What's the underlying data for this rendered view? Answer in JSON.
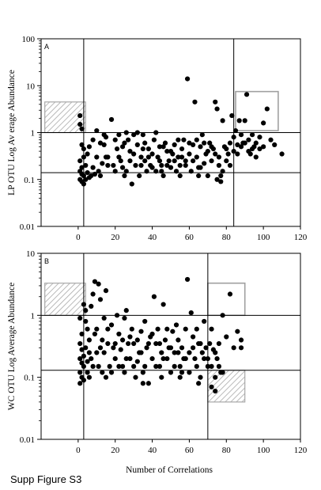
{
  "caption": "Supp Figure S3",
  "xlabel": "Number of Correlations",
  "colors": {
    "points": "#000000",
    "hatch_box": "#a8a8a8",
    "open_box": "#a0a0a0",
    "frame": "#000000"
  },
  "chart_data": [
    {
      "type": "scatter",
      "panel_label": "A",
      "ylabel": "LP OTU Log Av erage Abundance",
      "xlabel": "",
      "xlim": [
        -20,
        120
      ],
      "ylim": [
        0.01,
        100
      ],
      "yscale": "log",
      "xticks": [
        "0",
        "20",
        "40",
        "60",
        "80",
        "100",
        "120"
      ],
      "yticks": [
        "0.01",
        "0.1",
        "1",
        "10",
        "100"
      ],
      "reference_lines": {
        "x": [
          3,
          84
        ],
        "y": [
          1,
          0.14
        ]
      },
      "highlight_boxes": [
        {
          "style": "hatched",
          "x": [
            -18,
            4
          ],
          "y": [
            1,
            4.5
          ]
        },
        {
          "style": "open",
          "x": [
            85,
            108
          ],
          "y": [
            1.1,
            7.5
          ]
        }
      ],
      "points": [
        [
          1,
          2.3
        ],
        [
          1,
          1.5
        ],
        [
          2,
          1.2
        ],
        [
          2,
          0.55
        ],
        [
          3,
          0.45
        ],
        [
          3,
          0.3
        ],
        [
          1,
          0.25
        ],
        [
          2,
          0.18
        ],
        [
          1,
          0.15
        ],
        [
          2,
          0.13
        ],
        [
          3,
          0.12
        ],
        [
          1,
          0.1
        ],
        [
          2,
          0.09
        ],
        [
          3,
          0.08
        ],
        [
          4,
          0.2
        ],
        [
          5,
          0.35
        ],
        [
          5,
          0.14
        ],
        [
          6,
          0.11
        ],
        [
          4,
          0.1
        ],
        [
          7,
          0.12
        ],
        [
          8,
          0.18
        ],
        [
          9,
          0.13
        ],
        [
          10,
          0.3
        ],
        [
          11,
          0.15
        ],
        [
          12,
          0.12
        ],
        [
          13,
          0.22
        ],
        [
          14,
          0.55
        ],
        [
          15,
          0.8
        ],
        [
          16,
          0.3
        ],
        [
          18,
          1.9
        ],
        [
          19,
          0.2
        ],
        [
          20,
          0.15
        ],
        [
          21,
          0.45
        ],
        [
          22,
          0.3
        ],
        [
          23,
          0.25
        ],
        [
          24,
          0.18
        ],
        [
          25,
          0.6
        ],
        [
          26,
          0.15
        ],
        [
          27,
          0.7
        ],
        [
          28,
          0.4
        ],
        [
          29,
          0.08
        ],
        [
          30,
          0.35
        ],
        [
          31,
          0.2
        ],
        [
          32,
          0.55
        ],
        [
          33,
          0.12
        ],
        [
          34,
          0.3
        ],
        [
          35,
          0.9
        ],
        [
          36,
          0.25
        ],
        [
          37,
          0.15
        ],
        [
          38,
          0.45
        ],
        [
          39,
          0.2
        ],
        [
          40,
          0.35
        ],
        [
          41,
          0.7
        ],
        [
          42,
          0.15
        ],
        [
          43,
          0.3
        ],
        [
          44,
          0.5
        ],
        [
          45,
          0.2
        ],
        [
          46,
          0.12
        ],
        [
          47,
          0.6
        ],
        [
          48,
          0.4
        ],
        [
          49,
          0.25
        ],
        [
          50,
          0.18
        ],
        [
          51,
          0.35
        ],
        [
          52,
          0.55
        ],
        [
          53,
          0.15
        ],
        [
          54,
          0.3
        ],
        [
          55,
          0.2
        ],
        [
          56,
          0.45
        ],
        [
          57,
          0.7
        ],
        [
          58,
          0.25
        ],
        [
          59,
          14
        ],
        [
          60,
          0.35
        ],
        [
          61,
          0.15
        ],
        [
          62,
          0.55
        ],
        [
          63,
          4.5
        ],
        [
          64,
          0.3
        ],
        [
          65,
          0.18
        ],
        [
          66,
          0.5
        ],
        [
          67,
          0.9
        ],
        [
          68,
          0.22
        ],
        [
          69,
          0.35
        ],
        [
          70,
          0.12
        ],
        [
          71,
          0.6
        ],
        [
          72,
          0.25
        ],
        [
          73,
          0.45
        ],
        [
          74,
          4.5
        ],
        [
          75,
          3.2
        ],
        [
          76,
          0.3
        ],
        [
          77,
          0.12
        ],
        [
          78,
          1.8
        ],
        [
          79,
          0.5
        ],
        [
          80,
          0.25
        ],
        [
          81,
          0.35
        ],
        [
          82,
          0.6
        ],
        [
          83,
          2.3
        ],
        [
          84,
          0.4
        ],
        [
          86,
          0.55
        ],
        [
          87,
          1.8
        ],
        [
          88,
          0.9
        ],
        [
          89,
          0.6
        ],
        [
          90,
          1.8
        ],
        [
          91,
          6.5
        ],
        [
          92,
          0.7
        ],
        [
          93,
          0.35
        ],
        [
          94,
          0.45
        ],
        [
          95,
          0.5
        ],
        [
          96,
          0.3
        ],
        [
          98,
          0.45
        ],
        [
          100,
          1.6
        ],
        [
          102,
          3.2
        ],
        [
          104,
          0.7
        ],
        [
          106,
          0.55
        ],
        [
          110,
          0.35
        ],
        [
          6,
          0.5
        ],
        [
          8,
          0.7
        ],
        [
          10,
          1.1
        ],
        [
          12,
          0.6
        ],
        [
          14,
          0.9
        ],
        [
          16,
          0.2
        ],
        [
          20,
          0.7
        ],
        [
          22,
          0.9
        ],
        [
          24,
          0.5
        ],
        [
          26,
          1.0
        ],
        [
          28,
          0.25
        ],
        [
          30,
          0.9
        ],
        [
          32,
          1.0
        ],
        [
          34,
          0.2
        ],
        [
          36,
          0.6
        ],
        [
          38,
          0.3
        ],
        [
          40,
          0.18
        ],
        [
          42,
          1.0
        ],
        [
          44,
          0.25
        ],
        [
          46,
          0.5
        ],
        [
          48,
          0.2
        ],
        [
          50,
          0.4
        ],
        [
          52,
          0.25
        ],
        [
          54,
          0.7
        ],
        [
          56,
          0.3
        ],
        [
          58,
          0.2
        ],
        [
          60,
          0.6
        ],
        [
          62,
          0.25
        ],
        [
          64,
          0.7
        ],
        [
          66,
          0.18
        ],
        [
          68,
          0.6
        ],
        [
          70,
          0.4
        ],
        [
          72,
          0.5
        ],
        [
          74,
          0.35
        ],
        [
          76,
          0.2
        ],
        [
          78,
          0.15
        ],
        [
          80,
          0.45
        ],
        [
          82,
          0.2
        ],
        [
          84,
          0.8
        ],
        [
          85,
          1.1
        ],
        [
          86,
          0.35
        ],
        [
          88,
          0.5
        ],
        [
          90,
          0.6
        ],
        [
          92,
          0.4
        ],
        [
          94,
          0.9
        ],
        [
          96,
          0.6
        ],
        [
          98,
          0.8
        ],
        [
          100,
          0.5
        ],
        [
          15,
          0.3
        ],
        [
          25,
          0.12
        ],
        [
          35,
          0.45
        ],
        [
          45,
          0.15
        ],
        [
          55,
          0.12
        ],
        [
          65,
          0.12
        ],
        [
          75,
          0.1
        ],
        [
          77,
          0.09
        ]
      ]
    },
    {
      "type": "scatter",
      "panel_label": "B",
      "ylabel": "WC OTU Log Average Abundance",
      "xlabel": "Number of Correlations",
      "xlim": [
        -20,
        120
      ],
      "ylim": [
        0.01,
        10
      ],
      "yscale": "log",
      "xticks": [
        "0",
        "20",
        "40",
        "60",
        "80",
        "100",
        "120"
      ],
      "yticks": [
        "0.01",
        "0.1",
        "1",
        "10"
      ],
      "reference_lines": {
        "x": [
          3,
          70
        ],
        "y": [
          1,
          0.13
        ]
      },
      "highlight_boxes": [
        {
          "style": "hatched",
          "x": [
            -18,
            4
          ],
          "y": [
            1,
            3.3
          ]
        },
        {
          "style": "hatched",
          "x": [
            70,
            90
          ],
          "y": [
            0.04,
            0.13
          ]
        },
        {
          "style": "open",
          "x": [
            70,
            90
          ],
          "y": [
            1,
            3.3
          ]
        }
      ],
      "points": [
        [
          1,
          0.9
        ],
        [
          2,
          0.5
        ],
        [
          1,
          0.35
        ],
        [
          2,
          0.28
        ],
        [
          3,
          0.22
        ],
        [
          1,
          0.2
        ],
        [
          2,
          0.17
        ],
        [
          3,
          0.15
        ],
        [
          1,
          0.12
        ],
        [
          2,
          0.1
        ],
        [
          3,
          0.09
        ],
        [
          1,
          0.08
        ],
        [
          4,
          0.8
        ],
        [
          4,
          0.3
        ],
        [
          5,
          0.18
        ],
        [
          5,
          0.12
        ],
        [
          6,
          0.1
        ],
        [
          6,
          0.25
        ],
        [
          7,
          1.4
        ],
        [
          8,
          2.2
        ],
        [
          9,
          3.5
        ],
        [
          10,
          0.6
        ],
        [
          11,
          3.2
        ],
        [
          12,
          1.8
        ],
        [
          13,
          0.4
        ],
        [
          14,
          0.25
        ],
        [
          15,
          2.5
        ],
        [
          16,
          0.35
        ],
        [
          17,
          0.15
        ],
        [
          18,
          0.7
        ],
        [
          19,
          0.3
        ],
        [
          20,
          0.2
        ],
        [
          21,
          1.0
        ],
        [
          22,
          0.5
        ],
        [
          23,
          0.28
        ],
        [
          24,
          0.15
        ],
        [
          25,
          0.9
        ],
        [
          26,
          1.2
        ],
        [
          27,
          0.35
        ],
        [
          28,
          0.2
        ],
        [
          29,
          0.6
        ],
        [
          30,
          0.15
        ],
        [
          31,
          0.1
        ],
        [
          32,
          0.4
        ],
        [
          33,
          0.25
        ],
        [
          34,
          0.55
        ],
        [
          35,
          0.12
        ],
        [
          36,
          0.8
        ],
        [
          37,
          0.3
        ],
        [
          38,
          0.08
        ],
        [
          39,
          0.45
        ],
        [
          40,
          0.2
        ],
        [
          41,
          2.0
        ],
        [
          42,
          0.35
        ],
        [
          43,
          0.6
        ],
        [
          44,
          0.15
        ],
        [
          45,
          0.25
        ],
        [
          46,
          1.5
        ],
        [
          47,
          0.4
        ],
        [
          48,
          0.2
        ],
        [
          49,
          0.3
        ],
        [
          50,
          0.12
        ],
        [
          51,
          0.55
        ],
        [
          52,
          0.25
        ],
        [
          53,
          0.7
        ],
        [
          54,
          0.4
        ],
        [
          55,
          0.15
        ],
        [
          56,
          0.3
        ],
        [
          57,
          0.2
        ],
        [
          58,
          0.6
        ],
        [
          59,
          3.8
        ],
        [
          60,
          0.25
        ],
        [
          61,
          1.1
        ],
        [
          62,
          0.45
        ],
        [
          63,
          0.2
        ],
        [
          64,
          0.15
        ],
        [
          65,
          0.35
        ],
        [
          66,
          0.1
        ],
        [
          67,
          0.25
        ],
        [
          68,
          0.8
        ],
        [
          69,
          0.3
        ],
        [
          70,
          0.2
        ],
        [
          71,
          0.35
        ],
        [
          72,
          0.15
        ],
        [
          73,
          0.28
        ],
        [
          74,
          0.1
        ],
        [
          75,
          0.2
        ],
        [
          76,
          0.35
        ],
        [
          77,
          0.12
        ],
        [
          78,
          1.0
        ],
        [
          80,
          0.45
        ],
        [
          82,
          2.2
        ],
        [
          84,
          0.3
        ],
        [
          86,
          0.55
        ],
        [
          88,
          0.4
        ],
        [
          88,
          0.3
        ],
        [
          3,
          1.5
        ],
        [
          4,
          1.2
        ],
        [
          5,
          0.6
        ],
        [
          6,
          0.4
        ],
        [
          7,
          0.2
        ],
        [
          8,
          0.15
        ],
        [
          9,
          0.5
        ],
        [
          10,
          0.25
        ],
        [
          11,
          0.15
        ],
        [
          12,
          0.3
        ],
        [
          13,
          0.12
        ],
        [
          14,
          0.9
        ],
        [
          16,
          0.6
        ],
        [
          18,
          0.12
        ],
        [
          20,
          0.35
        ],
        [
          22,
          0.15
        ],
        [
          24,
          0.4
        ],
        [
          26,
          0.2
        ],
        [
          28,
          0.45
        ],
        [
          30,
          0.35
        ],
        [
          32,
          0.18
        ],
        [
          34,
          0.25
        ],
        [
          36,
          0.15
        ],
        [
          38,
          0.35
        ],
        [
          40,
          0.5
        ],
        [
          42,
          0.15
        ],
        [
          44,
          0.35
        ],
        [
          46,
          0.2
        ],
        [
          48,
          0.6
        ],
        [
          50,
          0.3
        ],
        [
          52,
          0.15
        ],
        [
          54,
          0.25
        ],
        [
          56,
          0.12
        ],
        [
          58,
          0.2
        ],
        [
          60,
          0.12
        ],
        [
          62,
          0.3
        ],
        [
          64,
          0.6
        ],
        [
          66,
          0.35
        ],
        [
          68,
          0.2
        ],
        [
          70,
          0.15
        ],
        [
          72,
          0.6
        ],
        [
          74,
          0.25
        ],
        [
          76,
          0.15
        ],
        [
          78,
          0.12
        ],
        [
          15,
          0.1
        ],
        [
          25,
          0.12
        ],
        [
          35,
          0.08
        ],
        [
          45,
          0.1
        ],
        [
          55,
          0.1
        ],
        [
          65,
          0.08
        ],
        [
          72,
          0.07
        ],
        [
          74,
          0.06
        ]
      ]
    }
  ]
}
